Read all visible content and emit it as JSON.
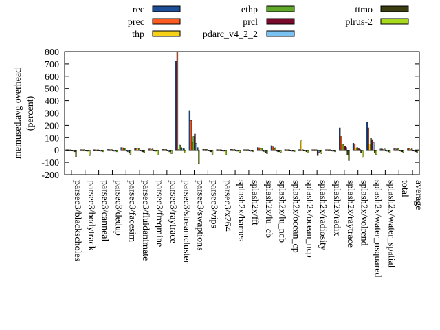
{
  "chart_data": {
    "type": "bar",
    "title": "",
    "xlabel": "",
    "ylabel": "memused.avg overhead",
    "ylabel2": "(percent)",
    "ylim": [
      -200,
      800
    ],
    "yticks": [
      -200,
      -100,
      0,
      100,
      200,
      300,
      400,
      500,
      600,
      700,
      800
    ],
    "grid": false,
    "legend_position": "top",
    "categories": [
      "parsec3/blackscholes",
      "parsec3/bodytrack",
      "parsec3/canneal",
      "parsec3/dedup",
      "parsec3/facesim",
      "parsec3/fluidanimate",
      "parsec3/freqmine",
      "parsec3/raytrace",
      "parsec3/streamcluster",
      "parsec3/swaptions",
      "parsec3/vips",
      "parsec3/x264",
      "splash2x/barnes",
      "splash2x/fft",
      "splash2x/lu_cb",
      "splash2x/lu_ncb",
      "splash2x/ocean_cp",
      "splash2x/ocean_ncp",
      "splash2x/radiosity",
      "splash2x/radix",
      "splash2x/raytrace",
      "splash2x/volrend",
      "splash2x/water_nsquared",
      "splash2x/water_spatial",
      "total",
      "average"
    ],
    "series": [
      {
        "name": "rec",
        "color": "#1f4e99",
        "values": [
          2,
          3,
          2,
          4,
          20,
          12,
          8,
          5,
          725,
          320,
          5,
          3,
          5,
          3,
          20,
          35,
          3,
          3,
          3,
          3,
          180,
          55,
          225,
          8,
          10,
          10
        ]
      },
      {
        "name": "prec",
        "color": "#ff5a1f",
        "values": [
          2,
          3,
          2,
          4,
          18,
          10,
          8,
          5,
          800,
          240,
          5,
          3,
          5,
          3,
          18,
          25,
          3,
          3,
          3,
          3,
          110,
          50,
          180,
          8,
          10,
          10
        ]
      },
      {
        "name": "thp",
        "color": "#f7d117",
        "values": [
          1,
          2,
          1,
          3,
          10,
          8,
          6,
          4,
          5,
          60,
          3,
          2,
          3,
          2,
          10,
          10,
          2,
          75,
          2,
          2,
          50,
          15,
          50,
          5,
          5,
          5
        ]
      },
      {
        "name": "ethp",
        "color": "#5fa82a",
        "values": [
          2,
          3,
          2,
          4,
          15,
          10,
          8,
          5,
          40,
          110,
          5,
          3,
          5,
          3,
          15,
          18,
          3,
          3,
          3,
          3,
          45,
          20,
          95,
          8,
          10,
          10
        ]
      },
      {
        "name": "prcl",
        "color": "#7a0a2c",
        "values": [
          -5,
          -5,
          -5,
          -5,
          -10,
          -5,
          -5,
          -5,
          20,
          130,
          -5,
          -5,
          -5,
          -5,
          -10,
          -10,
          -5,
          -5,
          -45,
          -5,
          30,
          10,
          85,
          -5,
          -5,
          -5
        ]
      },
      {
        "name": "pdarc_v4_2_2",
        "color": "#79c2f2",
        "values": [
          -10,
          -10,
          -10,
          -10,
          -15,
          -10,
          -10,
          -15,
          15,
          55,
          -10,
          -10,
          -10,
          -10,
          -15,
          -15,
          -10,
          -10,
          -20,
          -10,
          20,
          5,
          60,
          -10,
          -10,
          -10
        ]
      },
      {
        "name": "ttmo",
        "color": "#3b3d10",
        "values": [
          -15,
          -10,
          -10,
          -10,
          -20,
          -15,
          -10,
          -15,
          10,
          20,
          -15,
          -10,
          -10,
          -10,
          -20,
          -15,
          -10,
          -15,
          -15,
          -10,
          -40,
          -25,
          -20,
          -15,
          -15,
          -15
        ]
      },
      {
        "name": "plrus-2",
        "color": "#a8d91c",
        "values": [
          -55,
          -45,
          -15,
          -15,
          -35,
          -20,
          -40,
          -30,
          -25,
          -110,
          -35,
          -40,
          -20,
          -15,
          -30,
          -20,
          -15,
          -25,
          -30,
          -15,
          -85,
          -60,
          -35,
          -25,
          -20,
          -20
        ]
      }
    ]
  }
}
